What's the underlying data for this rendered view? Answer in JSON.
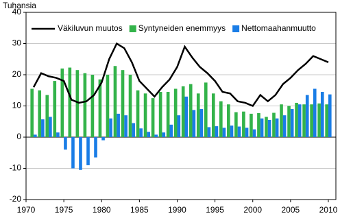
{
  "chart_data": {
    "type": "bar-line",
    "y_label": "Tuhansia",
    "x": [
      1971,
      1972,
      1973,
      1974,
      1975,
      1976,
      1977,
      1978,
      1979,
      1980,
      1981,
      1982,
      1983,
      1984,
      1985,
      1986,
      1987,
      1988,
      1989,
      1990,
      1991,
      1992,
      1993,
      1994,
      1995,
      1996,
      1997,
      1998,
      1999,
      2000,
      2001,
      2002,
      2003,
      2004,
      2005,
      2006,
      2007,
      2008,
      2009,
      2010
    ],
    "series": [
      {
        "name": "Väkiluvun muutos",
        "kind": "line",
        "color": "#000000",
        "values": [
          16,
          20.5,
          19.5,
          19,
          18,
          12,
          11,
          11.5,
          13.5,
          17.5,
          25,
          30,
          28.5,
          24,
          18,
          15.5,
          13,
          16,
          18.5,
          22.5,
          29,
          25.5,
          22.5,
          20.5,
          18,
          14.5,
          14,
          11.5,
          11,
          10,
          13.5,
          11.5,
          13.5,
          17,
          19,
          21.5,
          23.5,
          26,
          25,
          24
        ]
      },
      {
        "name": "Syntyneiden enemmyys",
        "kind": "bar",
        "color": "#33b34a",
        "values": [
          15.5,
          15,
          13.5,
          18,
          22,
          22.3,
          21.5,
          20.5,
          20,
          18.5,
          20,
          22.8,
          21.5,
          20,
          15,
          14,
          12.5,
          14.5,
          14.5,
          15.5,
          16.3,
          17,
          14,
          17.5,
          14,
          11.5,
          10.5,
          8,
          8.2,
          7.5,
          7.7,
          6.5,
          7.8,
          10.5,
          10,
          11,
          10.5,
          10.5,
          10.8,
          10.5
        ]
      },
      {
        "name": "Nettomaahanmuutto",
        "kind": "bar",
        "color": "#1a7de6",
        "values": [
          0.8,
          5.7,
          6.5,
          1.5,
          -4,
          -10,
          -10.5,
          -9,
          -6.5,
          -1,
          6,
          7.5,
          7,
          4.5,
          2.8,
          1.7,
          0.8,
          1.5,
          4,
          7,
          13,
          8.7,
          9,
          3.2,
          3.5,
          3,
          3.7,
          3.4,
          3,
          2.5,
          6,
          5.5,
          6,
          7,
          9,
          10.5,
          13.5,
          15.5,
          14.5,
          13.7
        ]
      }
    ],
    "xlim": [
      1970,
      2011
    ],
    "xticks": [
      1970,
      1975,
      1980,
      1985,
      1990,
      1995,
      2000,
      2005,
      2010
    ],
    "ylim": [
      -20,
      40
    ],
    "yticks": [
      -20,
      -10,
      0,
      10,
      20,
      30,
      40
    ],
    "grid": true,
    "legend": "top"
  }
}
